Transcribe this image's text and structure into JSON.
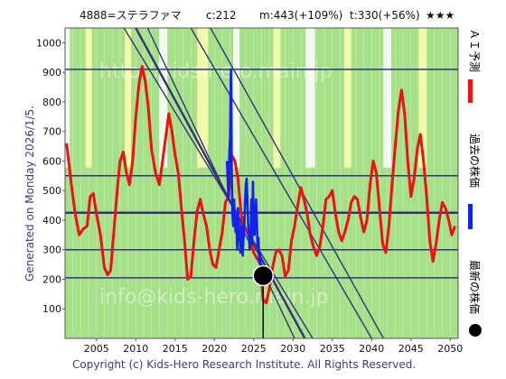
{
  "header": {
    "ticker": "4888=ステラファマ",
    "current": "c:212",
    "mid": "m:443(+109%)",
    "target": "t:330(+56%)",
    "stars": "★★★"
  },
  "side_label": "Generated on Monday 2026/1/5.",
  "copyright": "Copyright (c) Kids-Hero Research Institute. All Rights Reserved.",
  "watermarks": [
    "http://kids-hero.main.jp",
    "info@kids-hero.main.jp"
  ],
  "legend": {
    "ai": "ＡＩ予測",
    "past": "過去の株価",
    "latest": "最新の株価"
  },
  "colors": {
    "ai": "#ee1111",
    "past": "#1122ee",
    "latest": "#000000",
    "bg_green": "#a6e089",
    "bg_yellow": "#ffffb0",
    "bg_white": "#ffffff",
    "lines": "#333377"
  },
  "chart_data": {
    "type": "line",
    "xlim": [
      2001,
      2051
    ],
    "ylim": [
      0,
      1050
    ],
    "x_ticks": [
      2005,
      2010,
      2015,
      2020,
      2025,
      2030,
      2035,
      2040,
      2045,
      2050
    ],
    "y_ticks": [
      100,
      200,
      300,
      400,
      500,
      600,
      700,
      800,
      900,
      1000
    ],
    "horizontal_lines": [
      205,
      300,
      425,
      550,
      910
    ],
    "trend_lines": [
      {
        "x": [
          2008.5,
          2032.5
        ],
        "y": [
          1050,
          0
        ]
      },
      {
        "x": [
          2010.0,
          2031.5
        ],
        "y": [
          1050,
          0
        ]
      },
      {
        "x": [
          2011.5,
          2030.2
        ],
        "y": [
          1050,
          0
        ]
      },
      {
        "x": [
          2017.0,
          2040.0
        ],
        "y": [
          1050,
          0
        ]
      },
      {
        "x": [
          2019.5,
          2041.5
        ],
        "y": [
          1050,
          0
        ]
      }
    ],
    "latest_point": {
      "x": 2026.2,
      "y": 212
    },
    "series": [
      {
        "key": "ai",
        "x": [
          2001.2,
          2001.8,
          2002.3,
          2002.8,
          2003.3,
          2003.8,
          2004.2,
          2004.6,
          2005.0,
          2005.5,
          2006.0,
          2006.4,
          2006.8,
          2007.2,
          2007.7,
          2008.0,
          2008.4,
          2008.8,
          2009.2,
          2009.6,
          2010.0,
          2010.4,
          2010.8,
          2011.2,
          2011.6,
          2012.0,
          2012.5,
          2013.0,
          2013.4,
          2013.8,
          2014.2,
          2014.6,
          2015.0,
          2015.4,
          2015.8,
          2016.2,
          2016.6,
          2017.0,
          2017.4,
          2017.8,
          2018.2,
          2018.6,
          2019.0,
          2019.4,
          2019.8,
          2020.2,
          2020.6,
          2021.0,
          2021.4,
          2021.8,
          2022.2,
          2022.6,
          2023.0,
          2023.4,
          2023.8,
          2024.2,
          2024.6,
          2025.0,
          2025.4,
          2025.8,
          2026.2,
          2026.6,
          2027.0,
          2027.4,
          2027.8,
          2028.2,
          2028.6,
          2029.0,
          2029.4,
          2029.8,
          2030.2,
          2030.6,
          2031.0,
          2031.4,
          2031.8,
          2032.2,
          2032.6,
          2033.0,
          2033.4,
          2033.8,
          2034.2,
          2034.6,
          2035.0,
          2035.4,
          2035.8,
          2036.2,
          2036.6,
          2037.0,
          2037.4,
          2037.8,
          2038.2,
          2038.6,
          2039.0,
          2039.4,
          2039.8,
          2040.2,
          2040.6,
          2041.0,
          2041.4,
          2041.8,
          2042.2,
          2042.6,
          2043.0,
          2043.4,
          2043.8,
          2044.2,
          2044.6,
          2045.0,
          2045.4,
          2045.8,
          2046.2,
          2046.6,
          2047.0,
          2047.4,
          2047.8,
          2048.2,
          2048.6,
          2049.0,
          2049.4,
          2049.8,
          2050.2,
          2050.6
        ],
        "y": [
          660,
          520,
          420,
          350,
          370,
          380,
          480,
          490,
          420,
          350,
          240,
          215,
          230,
          360,
          520,
          600,
          630,
          560,
          520,
          600,
          750,
          860,
          920,
          870,
          780,
          640,
          560,
          520,
          600,
          680,
          760,
          700,
          620,
          560,
          440,
          330,
          200,
          210,
          330,
          430,
          470,
          420,
          380,
          300,
          250,
          240,
          300,
          360,
          460,
          480,
          620,
          600,
          540,
          420,
          380,
          360,
          330,
          290,
          270,
          260,
          130,
          120,
          170,
          240,
          290,
          300,
          280,
          210,
          230,
          330,
          380,
          450,
          510,
          470,
          420,
          350,
          310,
          280,
          310,
          380,
          470,
          480,
          500,
          420,
          360,
          330,
          360,
          400,
          460,
          480,
          470,
          410,
          360,
          400,
          520,
          600,
          560,
          440,
          320,
          290,
          380,
          520,
          650,
          770,
          840,
          760,
          600,
          480,
          540,
          640,
          690,
          600,
          480,
          330,
          260,
          320,
          400,
          460,
          440,
          400,
          350,
          380
        ]
      },
      {
        "key": "past",
        "x": [
          2021.6,
          2021.8,
          2021.9,
          2022.0,
          2022.1,
          2022.2,
          2022.3,
          2022.4,
          2022.5,
          2022.6,
          2022.7,
          2022.8,
          2022.9,
          2023.0,
          2023.1,
          2023.2,
          2023.3,
          2023.4,
          2023.5,
          2023.6,
          2023.7,
          2023.8,
          2023.9,
          2024.0,
          2024.1,
          2024.2,
          2024.3,
          2024.4,
          2024.5,
          2024.6,
          2024.7,
          2024.8,
          2024.9,
          2025.0,
          2025.1,
          2025.2,
          2025.3,
          2025.4,
          2025.5,
          2025.6,
          2025.7,
          2025.8,
          2025.9,
          2026.0,
          2026.1
        ],
        "y": [
          600,
          470,
          620,
          680,
          910,
          560,
          420,
          380,
          470,
          400,
          360,
          410,
          300,
          440,
          330,
          380,
          290,
          330,
          380,
          280,
          340,
          380,
          460,
          520,
          540,
          460,
          380,
          350,
          300,
          340,
          470,
          320,
          530,
          400,
          350,
          420,
          470,
          390,
          310,
          340,
          260,
          290,
          230,
          250,
          212
        ]
      }
    ]
  }
}
